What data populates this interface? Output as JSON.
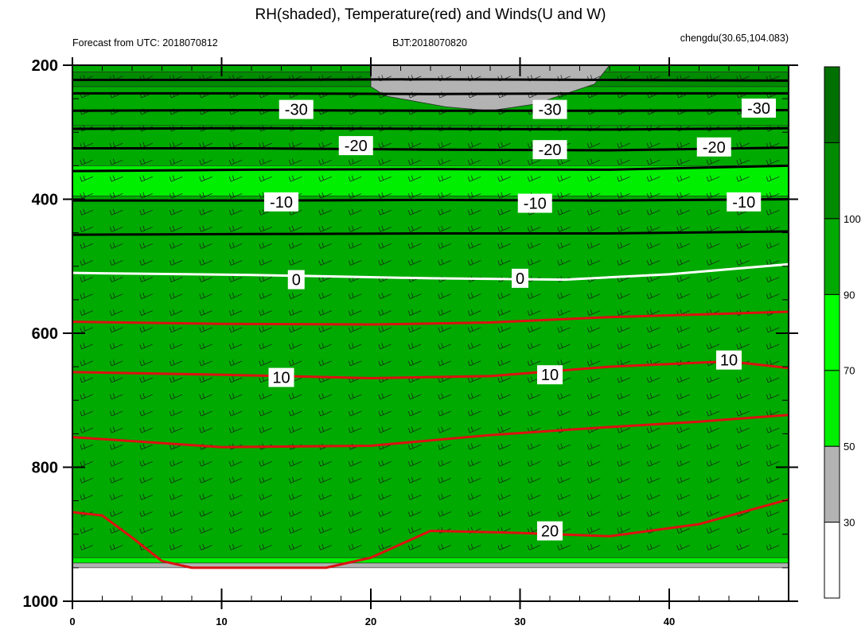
{
  "chart_data": {
    "type": "contour",
    "title": "RH(shaded), Temperature(red) and Winds(U and W)",
    "subtitle_left": "Forecast from UTC: 2018070812",
    "subtitle_center": "BJT:2018070820",
    "subtitle_right": "chengdu(30.65,104.083)",
    "xlabel": "",
    "ylabel": "",
    "x_range": [
      0,
      48
    ],
    "y_range": [
      200,
      1000
    ],
    "x_ticks": [
      0,
      10,
      20,
      30,
      40
    ],
    "y_ticks": [
      200,
      400,
      600,
      800,
      1000
    ],
    "colorbar": {
      "levels": [
        30,
        50,
        70,
        90,
        100
      ],
      "level_labels": [
        "30",
        "50",
        "70",
        "90",
        "100"
      ],
      "colors": [
        "#ffffff",
        "#b3b3b3",
        "#00ee00",
        "#00ff00",
        "#00cd00",
        "#008b00",
        "#007000"
      ]
    },
    "surface_pressure": 950,
    "rh_layers": [
      {
        "p_top": 200,
        "p_bottom": 210,
        "rh": 95
      },
      {
        "p_top": 210,
        "p_bottom": 232,
        "rh": 98
      },
      {
        "p_top": 232,
        "p_bottom": 290,
        "rh": 92
      },
      {
        "p_top": 290,
        "p_bottom": 350,
        "rh": 93
      },
      {
        "p_top": 350,
        "p_bottom": 395,
        "rh": 85
      },
      {
        "p_top": 395,
        "p_bottom": 935,
        "rh": 95
      },
      {
        "p_top": 935,
        "p_bottom": 943,
        "rh": 82
      },
      {
        "p_top": 943,
        "p_bottom": 950,
        "rh": 40
      }
    ],
    "rh_dry_region": {
      "rh": 40,
      "points": [
        [
          20,
          200
        ],
        [
          36,
          200
        ],
        [
          35,
          228
        ],
        [
          31,
          258
        ],
        [
          28,
          268
        ],
        [
          25,
          262
        ],
        [
          21,
          246
        ],
        [
          20,
          232
        ]
      ]
    },
    "isotherms": [
      {
        "value": -40,
        "points": [
          [
            0,
            222
          ],
          [
            12,
            222
          ],
          [
            24,
            221
          ],
          [
            36,
            222
          ],
          [
            48,
            223
          ]
        ]
      },
      {
        "value": -35,
        "points": [
          [
            0,
            242
          ],
          [
            12,
            242
          ],
          [
            24,
            243
          ],
          [
            36,
            242
          ],
          [
            48,
            242
          ]
        ]
      },
      {
        "value": -30,
        "points": [
          [
            0,
            268
          ],
          [
            12,
            267
          ],
          [
            24,
            268
          ],
          [
            36,
            268
          ],
          [
            48,
            267
          ]
        ]
      },
      {
        "value": -25,
        "points": [
          [
            0,
            295
          ],
          [
            12,
            294
          ],
          [
            24,
            295
          ],
          [
            36,
            296
          ],
          [
            48,
            294
          ]
        ]
      },
      {
        "value": -20,
        "points": [
          [
            0,
            324
          ],
          [
            12,
            324
          ],
          [
            24,
            326
          ],
          [
            36,
            327
          ],
          [
            48,
            323
          ]
        ]
      },
      {
        "value": -15,
        "points": [
          [
            0,
            358
          ],
          [
            12,
            356
          ],
          [
            24,
            355
          ],
          [
            36,
            356
          ],
          [
            48,
            350
          ]
        ]
      },
      {
        "value": -10,
        "points": [
          [
            0,
            402
          ],
          [
            12,
            402
          ],
          [
            24,
            401
          ],
          [
            36,
            402
          ],
          [
            48,
            400
          ]
        ]
      },
      {
        "value": -5,
        "points": [
          [
            0,
            453
          ],
          [
            12,
            452
          ],
          [
            24,
            451
          ],
          [
            36,
            451
          ],
          [
            48,
            448
          ]
        ]
      },
      {
        "value": 0,
        "points": [
          [
            0,
            510
          ],
          [
            12,
            513
          ],
          [
            24,
            518
          ],
          [
            33,
            520
          ],
          [
            40,
            512
          ],
          [
            48,
            497
          ]
        ]
      },
      {
        "value": 5,
        "points": [
          [
            0,
            583
          ],
          [
            10,
            586
          ],
          [
            20,
            587
          ],
          [
            28,
            584
          ],
          [
            36,
            576
          ],
          [
            48,
            568
          ]
        ]
      },
      {
        "value": 10,
        "points": [
          [
            0,
            658
          ],
          [
            10,
            662
          ],
          [
            20,
            667
          ],
          [
            28,
            664
          ],
          [
            36,
            650
          ],
          [
            44,
            642
          ],
          [
            48,
            652
          ]
        ]
      },
      {
        "value": 15,
        "points": [
          [
            0,
            755
          ],
          [
            10,
            770
          ],
          [
            20,
            768
          ],
          [
            28,
            752
          ],
          [
            36,
            740
          ],
          [
            42,
            732
          ],
          [
            48,
            722
          ]
        ]
      },
      {
        "value": 20,
        "points": [
          [
            0,
            867
          ],
          [
            2,
            872
          ],
          [
            4,
            905
          ],
          [
            6,
            940
          ],
          [
            8,
            950
          ],
          [
            17,
            950
          ],
          [
            20,
            935
          ],
          [
            24,
            895
          ],
          [
            30,
            898
          ],
          [
            36,
            903
          ],
          [
            42,
            885
          ],
          [
            48,
            848
          ]
        ]
      }
    ],
    "contour_labels": [
      {
        "text": "-30",
        "x": 15,
        "p": 266
      },
      {
        "text": "-30",
        "x": 32,
        "p": 266
      },
      {
        "text": "-30",
        "x": 46,
        "p": 264
      },
      {
        "text": "-20",
        "x": 19,
        "p": 320
      },
      {
        "text": "-20",
        "x": 32,
        "p": 326
      },
      {
        "text": "-20",
        "x": 43,
        "p": 322
      },
      {
        "text": "-10",
        "x": 14,
        "p": 404
      },
      {
        "text": "-10",
        "x": 31,
        "p": 406
      },
      {
        "text": "-10",
        "x": 45,
        "p": 404
      },
      {
        "text": "0",
        "x": 15,
        "p": 520
      },
      {
        "text": "0",
        "x": 30,
        "p": 518
      },
      {
        "text": "10",
        "x": 14,
        "p": 666
      },
      {
        "text": "10",
        "x": 32,
        "p": 662
      },
      {
        "text": "10",
        "x": 44,
        "p": 640
      },
      {
        "text": "20",
        "x": 32,
        "p": 895
      }
    ],
    "wind_barbs": {
      "x_spacing": 2,
      "p_levels": [
        220,
        245,
        270,
        295,
        320,
        345,
        370,
        395,
        420,
        445,
        470,
        495,
        520,
        545,
        570,
        595,
        620,
        645,
        670,
        695,
        720,
        745,
        770,
        795,
        820,
        845,
        870,
        895,
        920
      ]
    }
  }
}
